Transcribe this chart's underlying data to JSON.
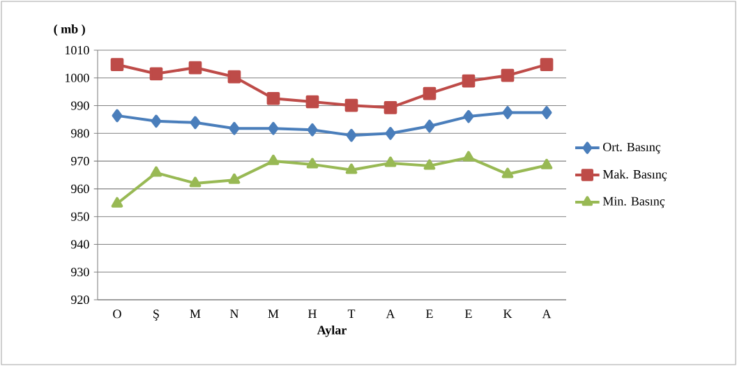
{
  "chart_data": {
    "type": "line",
    "xlabel": "Aylar",
    "ylabel": "( mb )",
    "categories": [
      "O",
      "Ş",
      "M",
      "N",
      "M",
      "H",
      "T",
      "A",
      "E",
      "E",
      "K",
      "A"
    ],
    "series": [
      {
        "name": "Ort. Basınç",
        "color": "#4a7ebb",
        "marker": "diamond",
        "values": [
          986.4,
          984.4,
          983.9,
          981.8,
          981.8,
          981.3,
          979.3,
          980.0,
          982.6,
          986.1,
          987.5,
          987.5
        ]
      },
      {
        "name": "Mak. Basınç",
        "color": "#be4b48",
        "marker": "square",
        "values": [
          1004.8,
          1001.5,
          1003.7,
          1000.4,
          992.6,
          991.4,
          990.1,
          989.3,
          994.4,
          998.9,
          1000.9,
          1004.8
        ]
      },
      {
        "name": "Min. Basınç",
        "color": "#98b954",
        "marker": "triangle",
        "values": [
          954.7,
          965.8,
          962.0,
          963.2,
          970.0,
          968.8,
          966.8,
          969.3,
          968.3,
          971.3,
          965.3,
          968.5
        ]
      }
    ],
    "ylim": [
      920,
      1010
    ],
    "yticks": [
      920,
      930,
      940,
      950,
      960,
      970,
      980,
      990,
      1000,
      1010
    ],
    "grid": "y",
    "legend": "right",
    "line_style": "solid"
  }
}
